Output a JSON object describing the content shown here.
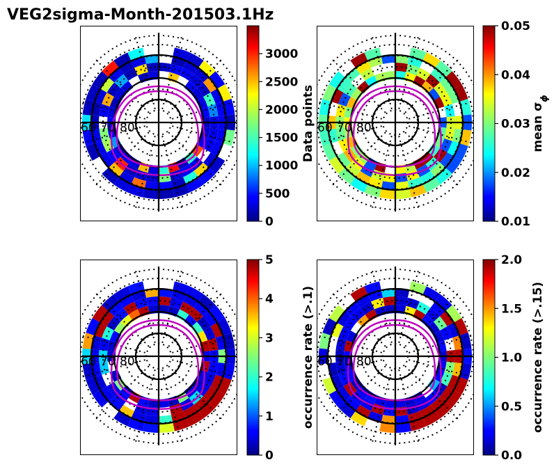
{
  "figure_title": "VEG2sigma-Month-201503.1Hz",
  "chart_data": [
    {
      "type": "heatmap",
      "projection": "polar",
      "panel": "top-left",
      "colorbar_label": "Data points",
      "vmin": 0,
      "vmax": 3500,
      "colorbar_ticks": [
        0,
        500,
        1000,
        1500,
        2000,
        2500,
        3000
      ],
      "colorbar_ticklabels": [
        "0",
        "500",
        "1000",
        "1500",
        "2000",
        "2500",
        "3000"
      ],
      "lat_labels": [
        "60",
        "70",
        "80"
      ]
    },
    {
      "type": "heatmap",
      "projection": "polar",
      "panel": "top-right",
      "colorbar_label": "mean σ",
      "colorbar_label_subscript": "ϕ",
      "vmin": 0.01,
      "vmax": 0.05,
      "colorbar_ticks": [
        0.01,
        0.02,
        0.03,
        0.04,
        0.05
      ],
      "colorbar_ticklabels": [
        "0.01",
        "0.02",
        "0.03",
        "0.04",
        "0.05"
      ],
      "lat_labels": [
        "60",
        "70",
        "80"
      ]
    },
    {
      "type": "heatmap",
      "projection": "polar",
      "panel": "bottom-left",
      "colorbar_label": "occurrence rate (>.1)",
      "vmin": 0,
      "vmax": 5,
      "colorbar_ticks": [
        0,
        1,
        2,
        3,
        4,
        5
      ],
      "colorbar_ticklabels": [
        "0",
        "1",
        "2",
        "3",
        "4",
        "5"
      ],
      "lat_labels": [
        "60",
        "70",
        "80"
      ]
    },
    {
      "type": "heatmap",
      "projection": "polar",
      "panel": "bottom-right",
      "colorbar_label": "occurrence rate (>.15)",
      "vmin": 0,
      "vmax": 2,
      "colorbar_ticks": [
        0,
        0.5,
        1,
        1.5,
        2
      ],
      "colorbar_ticklabels": [
        "0.0",
        "0.5",
        "1.0",
        "1.5",
        "2.0"
      ],
      "lat_labels": [
        "60",
        "70",
        "80"
      ]
    }
  ]
}
